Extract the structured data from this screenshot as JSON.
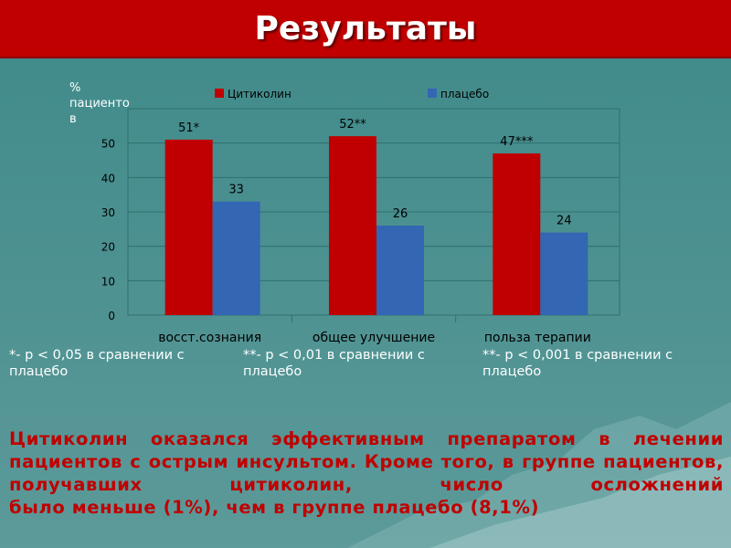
{
  "slide": {
    "title": "Результаты"
  },
  "chart_data": {
    "type": "bar",
    "title": "",
    "ylabel": "% пациенто в",
    "xlabel": "",
    "categories": [
      "восст.сознания",
      "общее улучшение",
      "польза терапии"
    ],
    "series": [
      {
        "name": "Цитиколин",
        "values": [
          51,
          52,
          47
        ],
        "labels": [
          "51*",
          "52**",
          "47***"
        ],
        "color": "#c00000"
      },
      {
        "name": "плацебо",
        "values": [
          33,
          26,
          24
        ],
        "labels": [
          "33",
          "26",
          "24"
        ],
        "color": "#3366b3"
      }
    ],
    "yticks": [
      0,
      10,
      20,
      30,
      40,
      50
    ],
    "ylim": [
      0,
      60
    ],
    "grid": true,
    "legend": "top"
  },
  "notes": [
    "*- p < 0,05 в сравнении с плацебо",
    "**- p < 0,01 в сравнении с плацебо",
    "**- p < 0,001 в сравнении с плацебо"
  ],
  "conclusion": {
    "text": "Цитиколин оказался эффективным препаратом в лечении пациентов с острым инсультом. Кроме того, в группе пациентов, получавших цитиколин, число осложнений",
    "text_last": "было меньше (1%), чем в группе плацебо (8,1%)",
    "color": "#c00000"
  }
}
